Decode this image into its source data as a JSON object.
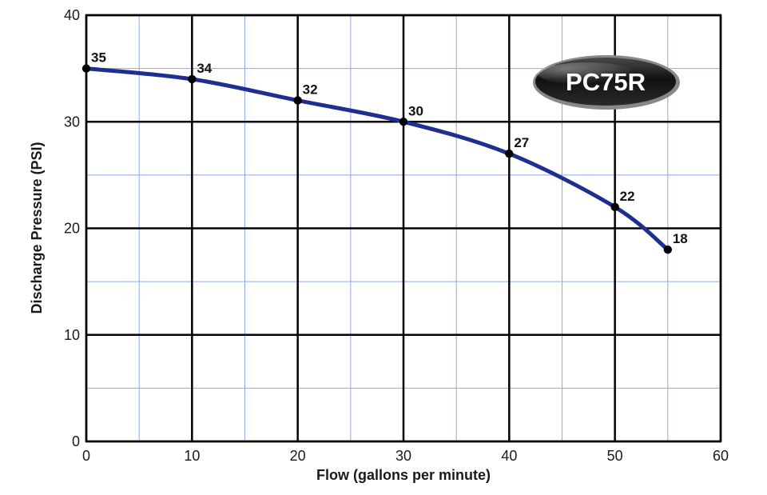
{
  "chart_data": {
    "type": "line",
    "title": "",
    "xlabel": "Flow (gallons per minute)",
    "ylabel": "Discharge Pressure (PSI)",
    "xlim": [
      0,
      60
    ],
    "ylim": [
      0,
      40
    ],
    "x_ticks": [
      "0",
      "10",
      "20",
      "30",
      "40",
      "50",
      "60"
    ],
    "y_ticks": [
      "0",
      "10",
      "20",
      "30",
      "40"
    ],
    "x_tick_values": [
      0,
      10,
      20,
      30,
      40,
      50,
      60
    ],
    "y_tick_values": [
      0,
      10,
      20,
      30,
      40
    ],
    "grid": true,
    "minor_grid_step_x": 5,
    "minor_grid_step_y": 5,
    "series": [
      {
        "x": [
          0,
          10,
          20,
          30,
          40,
          50,
          55
        ],
        "y": [
          35,
          34,
          32,
          30,
          27,
          22,
          18
        ],
        "point_labels": [
          "35",
          "34",
          "32",
          "30",
          "27",
          "22",
          "18"
        ],
        "color": "#1f2f8f"
      }
    ],
    "badge": {
      "text": "PC75R",
      "color": "#1a1a1a",
      "text_color": "#ffffff"
    },
    "colors": {
      "major_grid": "#000000",
      "minor_grid": "#8ea7e6",
      "axis_text": "#1a1a1a",
      "point": "#000000"
    }
  }
}
